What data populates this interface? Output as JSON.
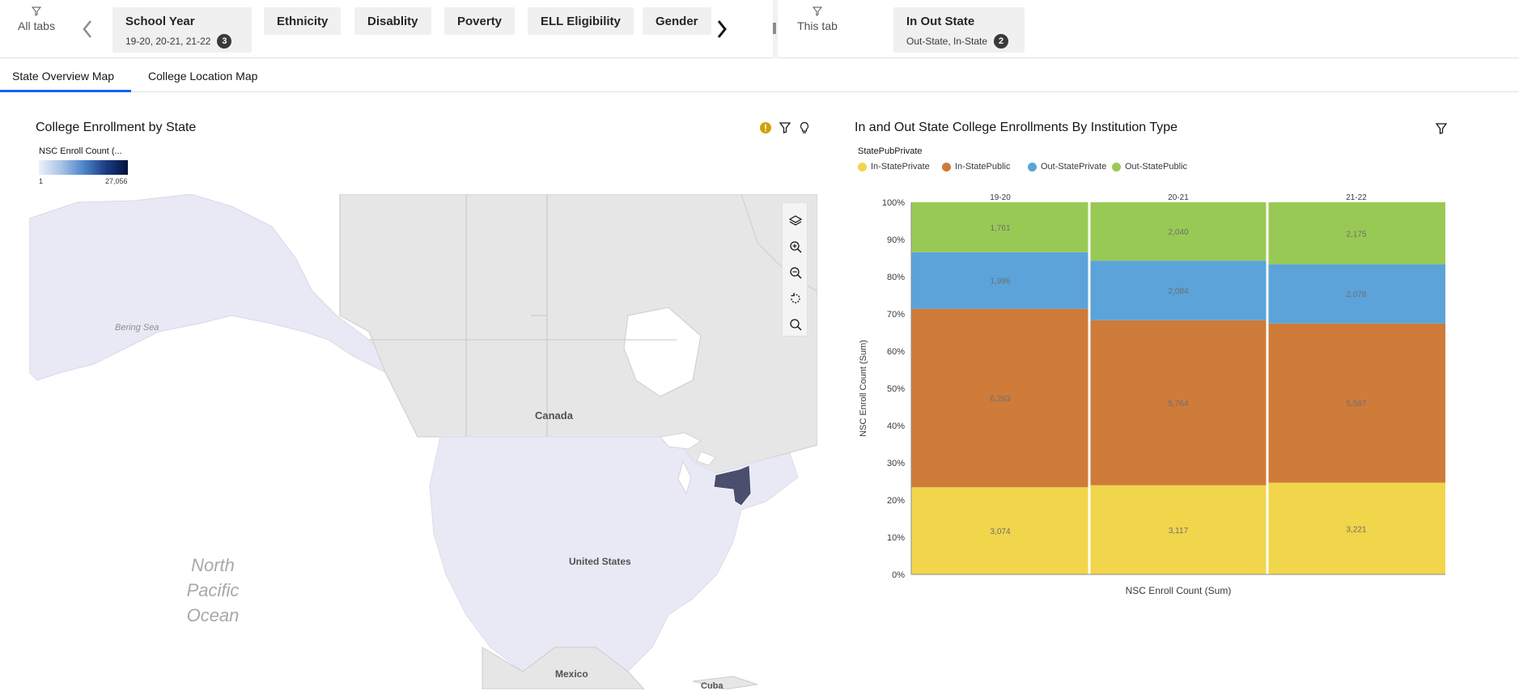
{
  "filterbar": {
    "all_tabs_label": "All tabs",
    "this_tab_label": "This tab",
    "school_year": {
      "title": "School Year",
      "value": "19-20, 20-21, 21-22",
      "count": "3"
    },
    "ethnicity": "Ethnicity",
    "disability": "Disablity",
    "poverty": "Poverty",
    "ell": "ELL Eligibility",
    "gender": "Gender",
    "in_out_state": {
      "title": "In Out State",
      "value": "Out-State, In-State",
      "count": "2"
    }
  },
  "tabs": {
    "state_overview": "State Overview Map",
    "college_location": "College Location Map"
  },
  "map_widget": {
    "title": "College Enrollment by State",
    "legend_title": "NSC Enroll Count (...",
    "legend_min": "1",
    "legend_max": "27,056",
    "labels": {
      "bering_sea": "Bering Sea",
      "canada": "Canada",
      "united_states": "United States",
      "north_pacific_1": "North",
      "north_pacific_2": "Pacific",
      "north_pacific_3": "Ocean",
      "mexico": "Mexico",
      "cuba": "Cuba"
    },
    "colors": {
      "land": "#e6e6e6",
      "us_fill": "#e9e9f5",
      "highlight_state": "#4a4f6e",
      "ocean": "#ffffff"
    },
    "icons": [
      "warning-icon",
      "filter-icon",
      "lightbulb-icon",
      "layers-icon",
      "zoom-in-icon",
      "zoom-out-icon",
      "reset-view-icon",
      "search-icon"
    ]
  },
  "chart_widget": {
    "title": "In and Out State College Enrollments By Institution Type",
    "legend_title": "StatePubPrivate"
  },
  "chart_data": {
    "type": "bar",
    "stacked": "percent",
    "categories": [
      "19-20",
      "20-21",
      "21-22"
    ],
    "series": [
      {
        "name": "In-StatePrivate",
        "color": "#f1d54b",
        "values": [
          3074,
          3117,
          3221
        ]
      },
      {
        "name": "In-StatePublic",
        "color": "#cf7b3a",
        "values": [
          6293,
          5764,
          5587
        ]
      },
      {
        "name": "Out-StatePrivate",
        "color": "#5ba3d9",
        "values": [
          1996,
          2084,
          2078
        ]
      },
      {
        "name": "Out-StatePublic",
        "color": "#99c955",
        "values": [
          1761,
          2040,
          2175
        ]
      }
    ],
    "segment_labels": [
      [
        "3,074",
        "6,293",
        "1,996",
        "1,761"
      ],
      [
        "3,117",
        "5,764",
        "2,084",
        "2,040"
      ],
      [
        "3,221",
        "5,587",
        "2,078",
        "2,175"
      ]
    ],
    "y_ticks": [
      "0%",
      "10%",
      "20%",
      "30%",
      "40%",
      "50%",
      "60%",
      "70%",
      "80%",
      "90%",
      "100%"
    ],
    "ylim": [
      0,
      100
    ],
    "ylabel": "NSC Enroll Count (Sum)",
    "xlabel": "NSC Enroll Count (Sum)",
    "legend_position": "top-left"
  }
}
